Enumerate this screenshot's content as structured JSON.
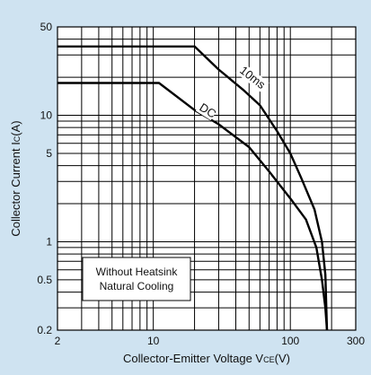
{
  "chart_data": {
    "type": "line",
    "title": "",
    "xlabel": "Collector-Emitter Voltage V",
    "xlabel_sub": "CE",
    "xlabel_unit": "(V)",
    "ylabel": "Collector Current I",
    "ylabel_sub": "C",
    "ylabel_unit": "(A)",
    "xscale": "log",
    "yscale": "log",
    "xlim": [
      2,
      300
    ],
    "ylim": [
      0.2,
      50
    ],
    "x_ticks": [
      {
        "value": 2,
        "label": "2"
      },
      {
        "value": 10,
        "label": "10"
      },
      {
        "value": 100,
        "label": "100"
      },
      {
        "value": 300,
        "label": "300"
      }
    ],
    "y_ticks": [
      {
        "value": 0.2,
        "label": "0.2"
      },
      {
        "value": 0.5,
        "label": "0.5"
      },
      {
        "value": 1,
        "label": "1"
      },
      {
        "value": 5,
        "label": "5"
      },
      {
        "value": 10,
        "label": "10"
      },
      {
        "value": 50,
        "label": "50"
      }
    ],
    "grid": true,
    "series": [
      {
        "name": "10ms",
        "points": [
          [
            2,
            35
          ],
          [
            20,
            35
          ],
          [
            30,
            23
          ],
          [
            45,
            16
          ],
          [
            60,
            12
          ],
          [
            80,
            7.5
          ],
          [
            100,
            5
          ],
          [
            120,
            3.2
          ],
          [
            150,
            1.8
          ],
          [
            170,
            1.0
          ],
          [
            180,
            0.55
          ],
          [
            185,
            0.2
          ]
        ]
      },
      {
        "name": "DC",
        "points": [
          [
            2,
            18
          ],
          [
            11,
            18
          ],
          [
            20,
            11
          ],
          [
            30,
            8.5
          ],
          [
            50,
            5.6
          ],
          [
            70,
            3.6
          ],
          [
            100,
            2.2
          ],
          [
            130,
            1.5
          ],
          [
            155,
            0.9
          ],
          [
            170,
            0.5
          ],
          [
            180,
            0.3
          ],
          [
            185,
            0.2
          ]
        ]
      }
    ],
    "annotations": [
      "Without Heatsink",
      "Natural Cooling"
    ]
  },
  "colors": {
    "background": "#cfe3f1",
    "plot_background": "#ffffff",
    "grid": "#000000",
    "curve": "#000000"
  }
}
